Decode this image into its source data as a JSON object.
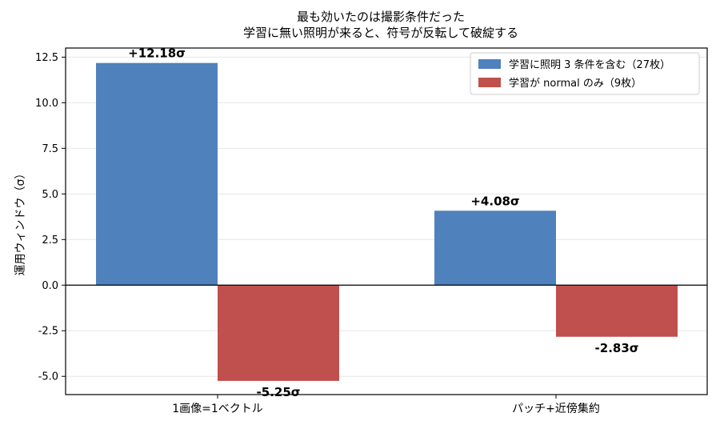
{
  "chart_data": {
    "type": "bar",
    "title_lines": [
      "最も効いたのは撮影条件だった",
      "学習に無い照明が来ると、符号が反転して破綻する"
    ],
    "xlabel": "",
    "ylabel": "運用ウィンドウ（σ）",
    "categories": [
      "1画像=1ベクトル",
      "パッチ+近傍集約"
    ],
    "series": [
      {
        "name": "学習に照明 3 条件を含む（27枚）",
        "color": "#4f81bd",
        "values": [
          12.18,
          4.08
        ],
        "labels": [
          "+12.18σ",
          "+4.08σ"
        ]
      },
      {
        "name": "学習が normal のみ（9枚）",
        "color": "#c0504d",
        "values": [
          -5.25,
          -2.83
        ],
        "labels": [
          "-5.25σ",
          "-2.83σ"
        ]
      }
    ],
    "ylim": [
      -6.0,
      13.0
    ],
    "yticks": [
      "-5.0",
      "-2.5",
      "0.0",
      "2.5",
      "5.0",
      "7.5",
      "10.0",
      "12.5"
    ],
    "ytick_values": [
      -5.0,
      -2.5,
      0.0,
      2.5,
      5.0,
      7.5,
      10.0,
      12.5
    ],
    "grid": "y",
    "legend_position": "top-right"
  }
}
